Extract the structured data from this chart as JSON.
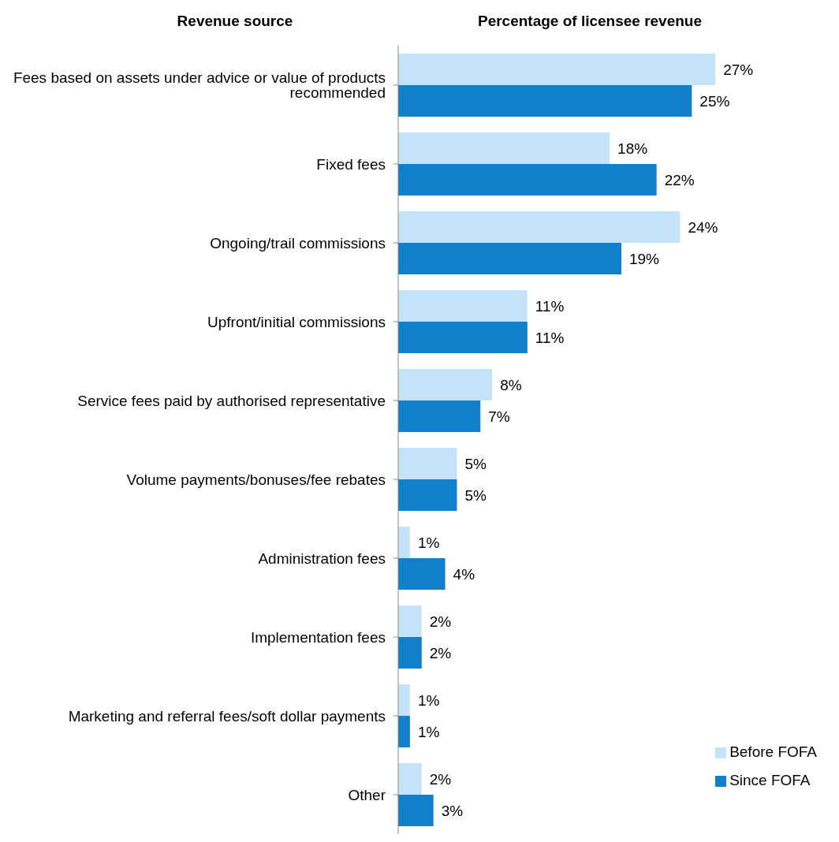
{
  "chart_data": {
    "type": "bar",
    "orientation": "horizontal",
    "xlabel": "Percentage of licensee revenue",
    "ylabel": "Revenue source",
    "categories": [
      "Fees based on assets under advice or value of products recommended",
      "Fixed fees",
      "Ongoing/trail commissions",
      "Upfront/initial commissions",
      "Service fees paid by authorised representative",
      "Volume payments/bonuses/fee rebates",
      "Administration fees",
      "Implementation fees",
      "Marketing and referral fees/soft dollar payments",
      "Other"
    ],
    "series": [
      {
        "name": "Before FOFA",
        "color": "#c5e3f8",
        "values": [
          27,
          18,
          24,
          11,
          8,
          5,
          1,
          2,
          1,
          2
        ],
        "value_labels": [
          "27%",
          "18%",
          "24%",
          "11%",
          "8%",
          "5%",
          "1%",
          "2%",
          "1%",
          "2%"
        ]
      },
      {
        "name": "Since FOFA",
        "color": "#127fcb",
        "values": [
          25,
          22,
          19,
          11,
          7,
          5,
          4,
          2,
          1,
          3
        ],
        "value_labels": [
          "25%",
          "22%",
          "19%",
          "11%",
          "7%",
          "5%",
          "4%",
          "2%",
          "1%",
          "3%"
        ]
      }
    ],
    "legend": "bottom right"
  }
}
